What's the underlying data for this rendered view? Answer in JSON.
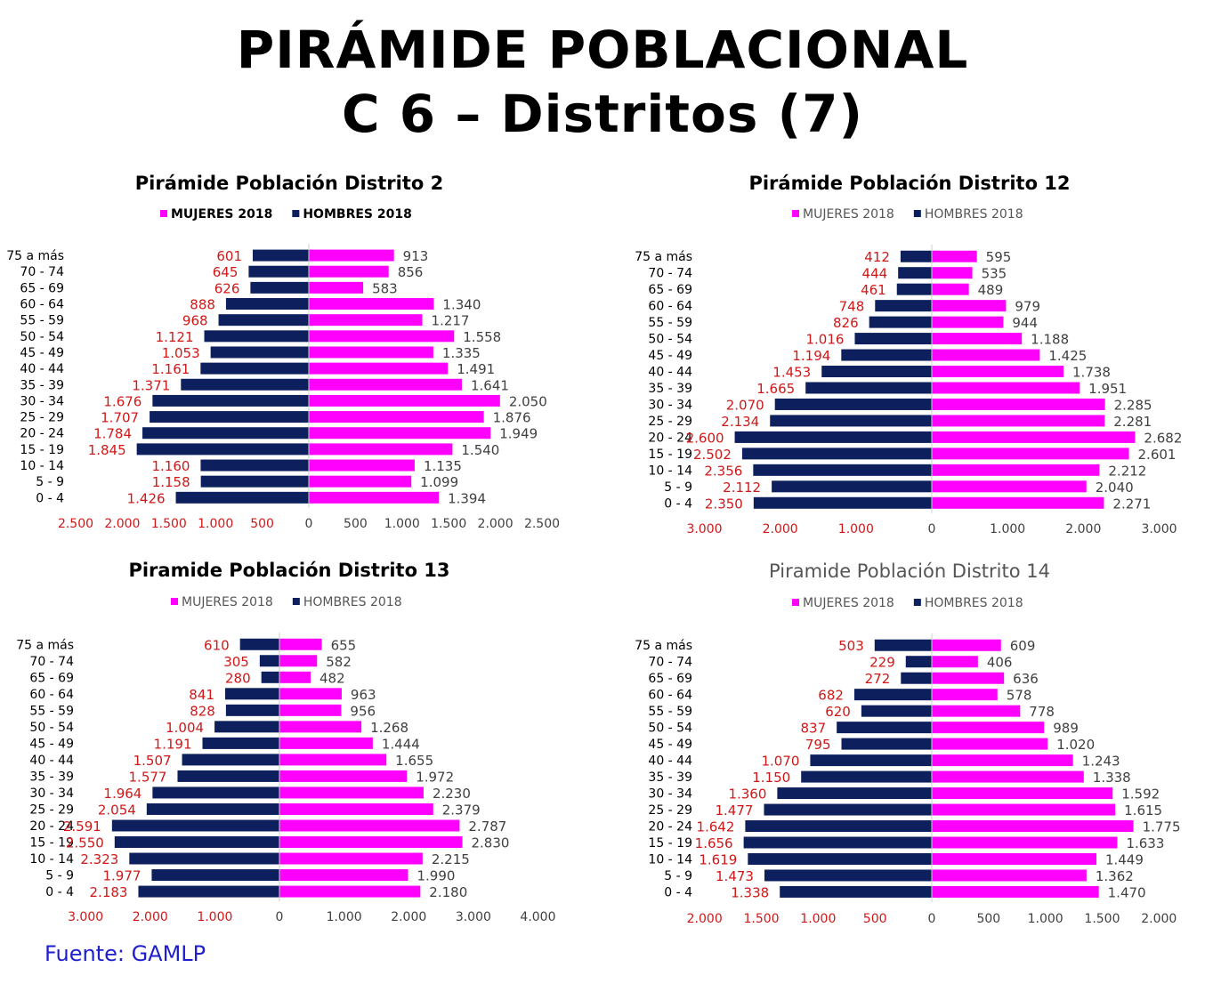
{
  "header": {
    "title_line1": "PIRÁMIDE POBLACIONAL",
    "title_line2": "C 6 – Distritos (7)"
  },
  "footer": {
    "source": "Fuente: GAMLP"
  },
  "colors": {
    "mujeres": "#ff00ff",
    "hombres": "#0d1f5c",
    "hombres_label": "#d01818",
    "mujeres_label": "#404040"
  },
  "chart_data": [
    {
      "type": "bar",
      "orientation": "horizontal-diverging",
      "title": "Pirámide Población Distrito 2",
      "title_style": "bold",
      "legend_style": "bold",
      "categories": [
        "75 a más",
        "70 - 74",
        "65 - 69",
        "60 - 64",
        "55 - 59",
        "50 - 54",
        "45 - 49",
        "40 - 44",
        "35 - 39",
        "30 - 34",
        "25 - 29",
        "20 - 24",
        "15 - 19",
        "10 - 14",
        "5 - 9",
        "0 - 4"
      ],
      "series": [
        {
          "name": "MUJERES 2018",
          "values": [
            913,
            856,
            583,
            1340,
            1217,
            1558,
            1335,
            1491,
            1641,
            2050,
            1876,
            1949,
            1540,
            1135,
            1099,
            1394
          ],
          "labels": [
            "913",
            "856",
            "583",
            "1.340",
            "1.217",
            "1.558",
            "1.335",
            "1.491",
            "1.641",
            "2.050",
            "1.876",
            "1.949",
            "1.540",
            "1.135",
            "1.099",
            "1.394"
          ]
        },
        {
          "name": "HOMBRES 2018",
          "values": [
            601,
            645,
            626,
            888,
            968,
            1121,
            1053,
            1161,
            1371,
            1676,
            1707,
            1784,
            1845,
            1160,
            1158,
            1426
          ],
          "labels": [
            "601",
            "645",
            "626",
            "888",
            "968",
            "1.121",
            "1.053",
            "1.161",
            "1.371",
            "1.676",
            "1.707",
            "1.784",
            "1.845",
            "1.160",
            "1.158",
            "1.426"
          ]
        }
      ],
      "xlim": [
        -2500,
        2500
      ],
      "xticks": [
        -2500,
        -2000,
        -1500,
        -1000,
        -500,
        0,
        500,
        1000,
        1500,
        2000,
        2500
      ],
      "xtick_labels": [
        "2.500",
        "2.000",
        "1.500",
        "1.000",
        "500",
        "0",
        "500",
        "1.000",
        "1.500",
        "2.000",
        "2.500"
      ],
      "legend": "top-center"
    },
    {
      "type": "bar",
      "orientation": "horizontal-diverging",
      "title": "Pirámide Población Distrito 12",
      "title_style": "bold",
      "legend_style": "normal",
      "categories": [
        "75 a más",
        "70 - 74",
        "65 - 69",
        "60 - 64",
        "55 - 59",
        "50 - 54",
        "45 - 49",
        "40 - 44",
        "35 - 39",
        "30 - 34",
        "25 - 29",
        "20 - 24",
        "15 - 19",
        "10 - 14",
        "5 - 9",
        "0 - 4"
      ],
      "series": [
        {
          "name": "MUJERES 2018",
          "values": [
            595,
            535,
            489,
            979,
            944,
            1188,
            1425,
            1738,
            1951,
            2285,
            2281,
            2682,
            2601,
            2212,
            2040,
            2271
          ],
          "labels": [
            "595",
            "535",
            "489",
            "979",
            "944",
            "1.188",
            "1.425",
            "1.738",
            "1.951",
            "2.285",
            "2.281",
            "2.682",
            "2.601",
            "2.212",
            "2.040",
            "2.271"
          ]
        },
        {
          "name": "HOMBRES 2018",
          "values": [
            412,
            444,
            461,
            748,
            826,
            1016,
            1194,
            1453,
            1665,
            2070,
            2134,
            2600,
            2502,
            2356,
            2112,
            2350
          ],
          "labels": [
            "412",
            "444",
            "461",
            "748",
            "826",
            "1.016",
            "1.194",
            "1.453",
            "1.665",
            "2.070",
            "2.134",
            "2.600",
            "2.502",
            "2.356",
            "2.112",
            "2.350"
          ]
        }
      ],
      "xlim": [
        -3000,
        3000
      ],
      "xticks": [
        -3000,
        -2000,
        -1000,
        0,
        1000,
        2000,
        3000
      ],
      "xtick_labels": [
        "3.000",
        "2.000",
        "1.000",
        "0",
        "1.000",
        "2.000",
        "3.000"
      ],
      "legend": "top-center"
    },
    {
      "type": "bar",
      "orientation": "horizontal-diverging",
      "title": "Piramide Población Distrito 13",
      "title_style": "bold",
      "legend_style": "normal",
      "categories": [
        "75 a más",
        "70 - 74",
        "65 - 69",
        "60 - 64",
        "55 - 59",
        "50 - 54",
        "45 - 49",
        "40 - 44",
        "35 - 39",
        "30 - 34",
        "25 - 29",
        "20 - 24",
        "15 - 19",
        "10 - 14",
        "5 - 9",
        "0 - 4"
      ],
      "series": [
        {
          "name": "MUJERES 2018",
          "values": [
            655,
            582,
            482,
            963,
            956,
            1268,
            1444,
            1655,
            1972,
            2230,
            2379,
            2787,
            2830,
            2215,
            1990,
            2180
          ],
          "labels": [
            "655",
            "582",
            "482",
            "963",
            "956",
            "1.268",
            "1.444",
            "1.655",
            "1.972",
            "2.230",
            "2.379",
            "2.787",
            "2.830",
            "2.215",
            "1.990",
            "2.180"
          ]
        },
        {
          "name": "HOMBRES 2018",
          "values": [
            610,
            305,
            280,
            841,
            828,
            1004,
            1191,
            1507,
            1577,
            1964,
            2054,
            2591,
            2550,
            2323,
            1977,
            2183
          ],
          "labels": [
            "610",
            "305",
            "280",
            "841",
            "828",
            "1.004",
            "1.191",
            "1.507",
            "1.577",
            "1.964",
            "2.054",
            "2.591",
            "2.550",
            "2.323",
            "1.977",
            "2.183"
          ]
        }
      ],
      "xlim": [
        -3000,
        4000
      ],
      "xticks": [
        -3000,
        -2000,
        -1000,
        0,
        1000,
        2000,
        3000,
        4000
      ],
      "xtick_labels": [
        "3.000",
        "2.000",
        "1.000",
        "0",
        "1.000",
        "2.000",
        "3.000",
        "4.000"
      ],
      "legend": "top-center"
    },
    {
      "type": "bar",
      "orientation": "horizontal-diverging",
      "title": "Piramide Población Distrito 14",
      "title_style": "normal",
      "legend_style": "normal",
      "categories": [
        "75 a más",
        "70 - 74",
        "65 - 69",
        "60 - 64",
        "55 - 59",
        "50 - 54",
        "45 - 49",
        "40 - 44",
        "35 - 39",
        "30 - 34",
        "25 - 29",
        "20 - 24",
        "15 - 19",
        "10 - 14",
        "5 - 9",
        "0 - 4"
      ],
      "series": [
        {
          "name": "MUJERES 2018",
          "values": [
            609,
            406,
            636,
            578,
            778,
            989,
            1020,
            1243,
            1338,
            1592,
            1615,
            1775,
            1633,
            1449,
            1362,
            1470
          ],
          "labels": [
            "609",
            "406",
            "636",
            "578",
            "778",
            "989",
            "1.020",
            "1.243",
            "1.338",
            "1.592",
            "1.615",
            "1.775",
            "1.633",
            "1.449",
            "1.362",
            "1.470"
          ]
        },
        {
          "name": "HOMBRES 2018",
          "values": [
            503,
            229,
            272,
            682,
            620,
            837,
            795,
            1070,
            1150,
            1360,
            1477,
            1642,
            1656,
            1619,
            1473,
            1338
          ],
          "labels": [
            "503",
            "229",
            "272",
            "682",
            "620",
            "837",
            "795",
            "1.070",
            "1.150",
            "1.360",
            "1.477",
            "1.642",
            "1.656",
            "1.619",
            "1.473",
            "1.338"
          ]
        }
      ],
      "xlim": [
        -2000,
        2000
      ],
      "xticks": [
        -2000,
        -1500,
        -1000,
        -500,
        0,
        500,
        1000,
        1500,
        2000
      ],
      "xtick_labels": [
        "2.000",
        "1.500",
        "1.000",
        "500",
        "0",
        "500",
        "1.000",
        "1.500",
        "2.000"
      ],
      "legend": "top-center"
    }
  ]
}
